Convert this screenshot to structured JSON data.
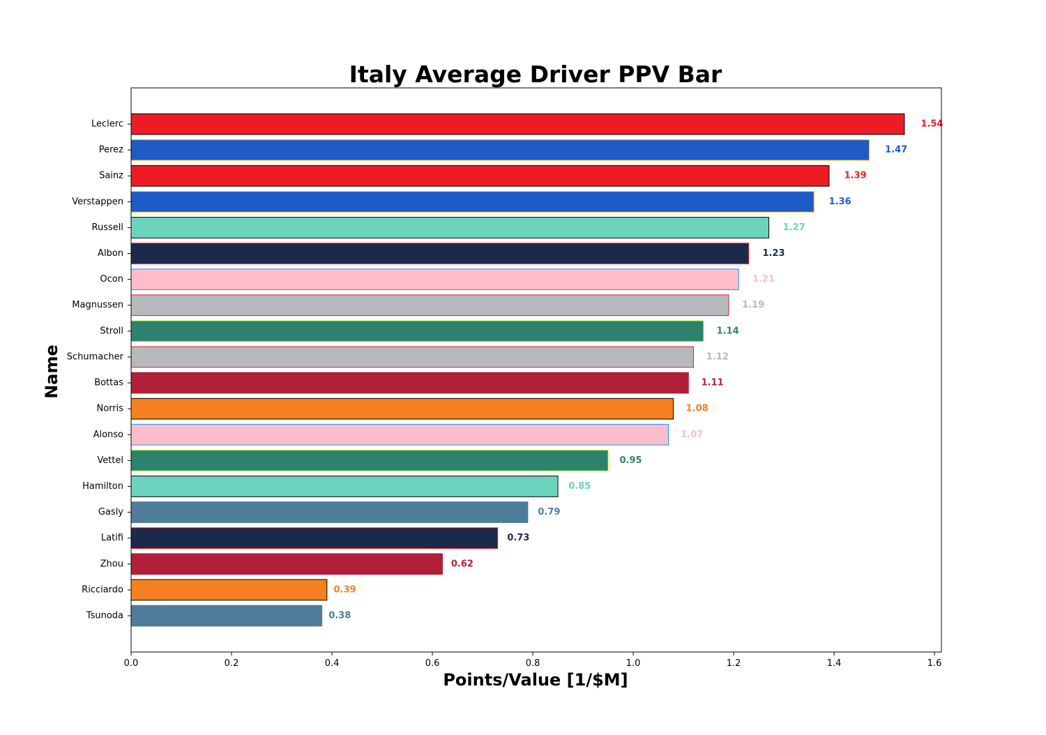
{
  "chart_data": {
    "type": "bar",
    "orientation": "horizontal",
    "title": "Italy Average Driver PPV Bar",
    "xlabel": "Points/Value [1/$M]",
    "ylabel": "Name",
    "xlim": [
      0,
      1.6
    ],
    "xticks": [
      "0.0",
      "0.2",
      "0.4",
      "0.6",
      "0.8",
      "1.0",
      "1.2",
      "1.4",
      "1.6"
    ],
    "grid": false,
    "categories": [
      "Leclerc",
      "Perez",
      "Sainz",
      "Verstappen",
      "Russell",
      "Albon",
      "Ocon",
      "Magnussen",
      "Stroll",
      "Schumacher",
      "Bottas",
      "Norris",
      "Alonso",
      "Vettel",
      "Hamilton",
      "Gasly",
      "Latifi",
      "Zhou",
      "Ricciardo",
      "Tsunoda"
    ],
    "values": [
      1.54,
      1.47,
      1.39,
      1.36,
      1.27,
      1.23,
      1.21,
      1.19,
      1.14,
      1.12,
      1.11,
      1.08,
      1.07,
      0.95,
      0.85,
      0.79,
      0.73,
      0.62,
      0.39,
      0.38
    ],
    "value_labels": [
      "1.54",
      "1.47",
      "1.39",
      "1.36",
      "1.27",
      "1.23",
      "1.21",
      "1.19",
      "1.14",
      "1.12",
      "1.11",
      "1.08",
      "1.07",
      "0.95",
      "0.85",
      "0.79",
      "0.73",
      "0.62",
      "0.39",
      "0.38"
    ],
    "fill_colors": [
      "#ED1C24",
      "#1E5BC6",
      "#ED1C24",
      "#1E5BC6",
      "#6CD3BF",
      "#1B2A4A",
      "#FEBDCB",
      "#B6BABD",
      "#2D826D",
      "#B6BABD",
      "#B12039",
      "#F58020",
      "#FEBDCB",
      "#2D826D",
      "#6CD3BF",
      "#4E7C9B",
      "#1B2A4A",
      "#B12039",
      "#F58020",
      "#4E7C9B"
    ],
    "edge_colors": [
      "#000000",
      "#FFD700",
      "#000000",
      "#FFD700",
      "#000000",
      "#ED1C24",
      "#1E90FF",
      "#ED1C24",
      "#ADFF2F",
      "#ED1C24",
      "#B12039",
      "#000000",
      "#1E90FF",
      "#ADFF2F",
      "#000000",
      "#4E7C9B",
      "#ED1C24",
      "#B12039",
      "#000000",
      "#4E7C9B"
    ]
  }
}
